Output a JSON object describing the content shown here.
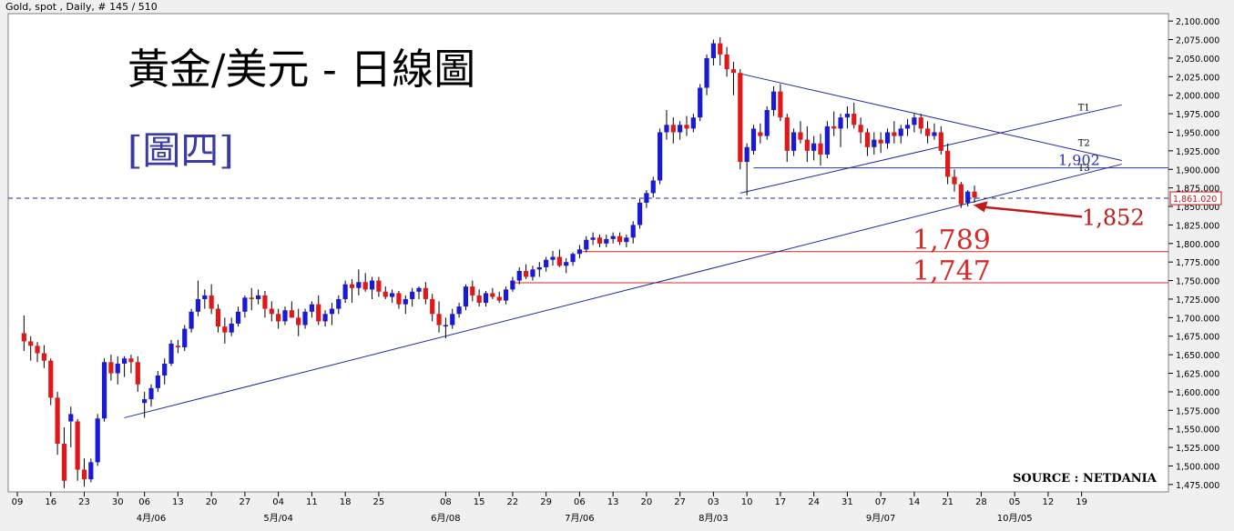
{
  "header": "Gold, spot , Daily, # 145 / 510",
  "chart_data": {
    "type": "candlestick",
    "title": "黃金/美元 - 日線圖",
    "subtitle": "[圖四]",
    "source": "SOURCE : NETDANIA",
    "price_marker": "1,861.020",
    "ylim": [
      1465,
      2110
    ],
    "yticks": [
      1475,
      1500,
      1525,
      1550,
      1575,
      1600,
      1625,
      1650,
      1675,
      1700,
      1725,
      1750,
      1775,
      1800,
      1825,
      1850,
      1875,
      1900,
      1925,
      1950,
      1975,
      2000,
      2025,
      2050,
      2075,
      2100
    ],
    "ytick_labels": [
      "1,475.000",
      "1,500.000",
      "1,525.000",
      "1,550.000",
      "1,575.000",
      "1,600.000",
      "1,625.000",
      "1,650.000",
      "1,675.000",
      "1,700.000",
      "1,725.000",
      "1,750.000",
      "1,775.000",
      "1,800.000",
      "1,825.000",
      "1,850.000",
      "1,875.000",
      "1,900.000",
      "1,925.000",
      "1,950.000",
      "1,975.000",
      "2,000.000",
      "2,025.000",
      "2,050.000",
      "2,075.000",
      "2,100.000"
    ],
    "x_day_labels": [
      {
        "i": 0,
        "t": "09"
      },
      {
        "i": 5,
        "t": "16"
      },
      {
        "i": 10,
        "t": "23"
      },
      {
        "i": 15,
        "t": "30"
      },
      {
        "i": 19,
        "t": "06"
      },
      {
        "i": 24,
        "t": "13"
      },
      {
        "i": 29,
        "t": "20"
      },
      {
        "i": 34,
        "t": "27"
      },
      {
        "i": 39,
        "t": "04"
      },
      {
        "i": 44,
        "t": "11"
      },
      {
        "i": 49,
        "t": "18"
      },
      {
        "i": 54,
        "t": "25"
      },
      {
        "i": 64,
        "t": "08"
      },
      {
        "i": 69,
        "t": "15"
      },
      {
        "i": 74,
        "t": "22"
      },
      {
        "i": 79,
        "t": "29"
      },
      {
        "i": 84,
        "t": "06"
      },
      {
        "i": 89,
        "t": "13"
      },
      {
        "i": 94,
        "t": "20"
      },
      {
        "i": 99,
        "t": "27"
      },
      {
        "i": 104,
        "t": "03"
      },
      {
        "i": 109,
        "t": "10"
      },
      {
        "i": 114,
        "t": "17"
      },
      {
        "i": 119,
        "t": "24"
      },
      {
        "i": 124,
        "t": "31"
      },
      {
        "i": 129,
        "t": "07"
      },
      {
        "i": 134,
        "t": "14"
      },
      {
        "i": 139,
        "t": "21"
      },
      {
        "i": 144,
        "t": "28"
      },
      {
        "i": 149,
        "t": "05"
      },
      {
        "i": 154,
        "t": "12"
      },
      {
        "i": 159,
        "t": "19"
      }
    ],
    "x_month_labels": [
      {
        "i": 20,
        "t": "4月/06"
      },
      {
        "i": 39,
        "t": "5月/04"
      },
      {
        "i": 64,
        "t": "6月/08"
      },
      {
        "i": 84,
        "t": "7月/06"
      },
      {
        "i": 104,
        "t": "8月/03"
      },
      {
        "i": 129,
        "t": "9月/07"
      },
      {
        "i": 149,
        "t": "10月/05"
      }
    ],
    "candles": [
      [
        1,
        1679,
        1703,
        1655,
        1668
      ],
      [
        2,
        1668,
        1675,
        1642,
        1662
      ],
      [
        3,
        1662,
        1667,
        1640,
        1652
      ],
      [
        4,
        1652,
        1663,
        1632,
        1642
      ],
      [
        5,
        1642,
        1645,
        1582,
        1592
      ],
      [
        6,
        1592,
        1600,
        1515,
        1530
      ],
      [
        7,
        1530,
        1552,
        1470,
        1480
      ],
      [
        8,
        1560,
        1580,
        1525,
        1570
      ],
      [
        9,
        1560,
        1563,
        1480,
        1495
      ],
      [
        10,
        1495,
        1510,
        1472,
        1482
      ],
      [
        11,
        1482,
        1510,
        1478,
        1505
      ],
      [
        12,
        1505,
        1570,
        1500,
        1564
      ],
      [
        13,
        1564,
        1645,
        1560,
        1640
      ],
      [
        14,
        1640,
        1650,
        1615,
        1625
      ],
      [
        15,
        1625,
        1648,
        1610,
        1638
      ],
      [
        16,
        1638,
        1648,
        1620,
        1645
      ],
      [
        17,
        1645,
        1650,
        1625,
        1640
      ],
      [
        18,
        1640,
        1648,
        1600,
        1610
      ],
      [
        19,
        1585,
        1600,
        1565,
        1590
      ],
      [
        20,
        1590,
        1610,
        1580,
        1605
      ],
      [
        21,
        1605,
        1628,
        1600,
        1622
      ],
      [
        22,
        1622,
        1645,
        1610,
        1638
      ],
      [
        23,
        1638,
        1670,
        1635,
        1665
      ],
      [
        24,
        1662,
        1670,
        1652,
        1660
      ],
      [
        25,
        1660,
        1690,
        1655,
        1685
      ],
      [
        26,
        1685,
        1712,
        1680,
        1708
      ],
      [
        27,
        1708,
        1750,
        1702,
        1725
      ],
      [
        28,
        1725,
        1738,
        1712,
        1730
      ],
      [
        29,
        1730,
        1745,
        1705,
        1712
      ],
      [
        30,
        1712,
        1718,
        1680,
        1688
      ],
      [
        31,
        1688,
        1700,
        1665,
        1680
      ],
      [
        32,
        1680,
        1700,
        1675,
        1692
      ],
      [
        33,
        1692,
        1715,
        1688,
        1708
      ],
      [
        34,
        1708,
        1730,
        1700,
        1727
      ],
      [
        35,
        1727,
        1740,
        1710,
        1725
      ],
      [
        36,
        1725,
        1738,
        1718,
        1730
      ],
      [
        37,
        1730,
        1736,
        1700,
        1712
      ],
      [
        38,
        1712,
        1722,
        1695,
        1705
      ],
      [
        39,
        1705,
        1712,
        1685,
        1695
      ],
      [
        40,
        1695,
        1715,
        1690,
        1710
      ],
      [
        41,
        1710,
        1722,
        1700,
        1700
      ],
      [
        42,
        1700,
        1712,
        1675,
        1690
      ],
      [
        43,
        1690,
        1712,
        1685,
        1708
      ],
      [
        44,
        1708,
        1722,
        1700,
        1718
      ],
      [
        45,
        1718,
        1730,
        1690,
        1695
      ],
      [
        46,
        1695,
        1710,
        1688,
        1705
      ],
      [
        47,
        1705,
        1720,
        1690,
        1712
      ],
      [
        48,
        1712,
        1730,
        1705,
        1725
      ],
      [
        49,
        1725,
        1750,
        1720,
        1745
      ],
      [
        50,
        1745,
        1752,
        1720,
        1740
      ],
      [
        51,
        1740,
        1765,
        1730,
        1748
      ],
      [
        52,
        1748,
        1760,
        1735,
        1738
      ],
      [
        53,
        1738,
        1755,
        1725,
        1750
      ],
      [
        54,
        1750,
        1755,
        1728,
        1735
      ],
      [
        55,
        1735,
        1742,
        1725,
        1728
      ],
      [
        56,
        1728,
        1738,
        1720,
        1733
      ],
      [
        57,
        1733,
        1736,
        1712,
        1718
      ],
      [
        58,
        1718,
        1730,
        1705,
        1725
      ],
      [
        59,
        1725,
        1740,
        1715,
        1735
      ],
      [
        60,
        1735,
        1742,
        1725,
        1740
      ],
      [
        61,
        1740,
        1748,
        1718,
        1725
      ],
      [
        62,
        1725,
        1732,
        1695,
        1705
      ],
      [
        63,
        1705,
        1722,
        1680,
        1690
      ],
      [
        64,
        1690,
        1700,
        1672,
        1690
      ],
      [
        65,
        1690,
        1712,
        1685,
        1705
      ],
      [
        66,
        1705,
        1720,
        1700,
        1715
      ],
      [
        67,
        1715,
        1745,
        1710,
        1742
      ],
      [
        68,
        1742,
        1750,
        1722,
        1730
      ],
      [
        69,
        1730,
        1738,
        1715,
        1720
      ],
      [
        70,
        1720,
        1736,
        1715,
        1733
      ],
      [
        71,
        1733,
        1740,
        1725,
        1728
      ],
      [
        72,
        1728,
        1735,
        1720,
        1723
      ],
      [
        73,
        1723,
        1742,
        1718,
        1738
      ],
      [
        74,
        1738,
        1755,
        1735,
        1750
      ],
      [
        75,
        1750,
        1768,
        1745,
        1763
      ],
      [
        76,
        1763,
        1772,
        1752,
        1755
      ],
      [
        77,
        1755,
        1770,
        1750,
        1765
      ],
      [
        78,
        1765,
        1775,
        1755,
        1768
      ],
      [
        79,
        1768,
        1782,
        1762,
        1778
      ],
      [
        80,
        1778,
        1790,
        1770,
        1782
      ],
      [
        81,
        1782,
        1792,
        1768,
        1770
      ],
      [
        82,
        1770,
        1780,
        1760,
        1775
      ],
      [
        83,
        1775,
        1788,
        1770,
        1786
      ],
      [
        84,
        1786,
        1798,
        1780,
        1792
      ],
      [
        85,
        1792,
        1810,
        1788,
        1805
      ],
      [
        86,
        1805,
        1815,
        1798,
        1808
      ],
      [
        87,
        1808,
        1812,
        1795,
        1800
      ],
      [
        88,
        1800,
        1812,
        1795,
        1806
      ],
      [
        89,
        1806,
        1815,
        1800,
        1810
      ],
      [
        90,
        1810,
        1815,
        1798,
        1802
      ],
      [
        91,
        1802,
        1812,
        1795,
        1808
      ],
      [
        92,
        1808,
        1830,
        1800,
        1825
      ],
      [
        93,
        1825,
        1860,
        1820,
        1855
      ],
      [
        94,
        1855,
        1872,
        1848,
        1868
      ],
      [
        95,
        1868,
        1890,
        1862,
        1885
      ],
      [
        96,
        1885,
        1955,
        1880,
        1950
      ],
      [
        97,
        1950,
        1980,
        1940,
        1960
      ],
      [
        98,
        1960,
        1970,
        1935,
        1950
      ],
      [
        99,
        1950,
        1965,
        1940,
        1960
      ],
      [
        100,
        1960,
        1972,
        1945,
        1955
      ],
      [
        101,
        1955,
        1975,
        1950,
        1970
      ],
      [
        102,
        1970,
        2015,
        1965,
        2010
      ],
      [
        103,
        2010,
        2055,
        2000,
        2050
      ],
      [
        104,
        2050,
        2075,
        2040,
        2070
      ],
      [
        105,
        2070,
        2078,
        2040,
        2055
      ],
      [
        106,
        2055,
        2065,
        2025,
        2035
      ],
      [
        107,
        2035,
        2045,
        2000,
        2030
      ],
      [
        108,
        2030,
        2035,
        1900,
        1910
      ],
      [
        109,
        1910,
        1935,
        1865,
        1930
      ],
      [
        110,
        1925,
        1960,
        1920,
        1955
      ],
      [
        111,
        1950,
        1962,
        1935,
        1945
      ],
      [
        112,
        1945,
        1985,
        1940,
        1980
      ],
      [
        113,
        1980,
        2012,
        1972,
        2005
      ],
      [
        114,
        2005,
        2015,
        1965,
        1970
      ],
      [
        115,
        1970,
        1975,
        1910,
        1925
      ],
      [
        116,
        1925,
        1955,
        1918,
        1950
      ],
      [
        117,
        1950,
        1965,
        1935,
        1940
      ],
      [
        118,
        1940,
        1958,
        1910,
        1925
      ],
      [
        119,
        1925,
        1945,
        1912,
        1935
      ],
      [
        120,
        1935,
        1948,
        1905,
        1920
      ],
      [
        121,
        1920,
        1965,
        1915,
        1958
      ],
      [
        122,
        1958,
        1978,
        1945,
        1955
      ],
      [
        123,
        1955,
        1975,
        1930,
        1970
      ],
      [
        124,
        1970,
        1985,
        1955,
        1975
      ],
      [
        125,
        1975,
        1990,
        1955,
        1960
      ],
      [
        126,
        1960,
        1970,
        1935,
        1950
      ],
      [
        127,
        1950,
        1955,
        1918,
        1930
      ],
      [
        128,
        1930,
        1950,
        1920,
        1940
      ],
      [
        129,
        1940,
        1950,
        1922,
        1935
      ],
      [
        130,
        1935,
        1955,
        1928,
        1950
      ],
      [
        131,
        1950,
        1965,
        1935,
        1945
      ],
      [
        132,
        1945,
        1960,
        1935,
        1955
      ],
      [
        133,
        1955,
        1968,
        1945,
        1960
      ],
      [
        134,
        1960,
        1975,
        1950,
        1970
      ],
      [
        135,
        1970,
        1975,
        1948,
        1955
      ],
      [
        136,
        1955,
        1965,
        1935,
        1945
      ],
      [
        137,
        1945,
        1962,
        1940,
        1950
      ],
      [
        138,
        1950,
        1958,
        1920,
        1925
      ],
      [
        139,
        1925,
        1935,
        1880,
        1890
      ],
      [
        140,
        1890,
        1900,
        1870,
        1880
      ],
      [
        141,
        1880,
        1883,
        1848,
        1853
      ],
      [
        142,
        1855,
        1872,
        1850,
        1870
      ],
      [
        143,
        1870,
        1878,
        1855,
        1862
      ]
    ],
    "support_resistance": [
      {
        "label": "1,902",
        "price": 1902,
        "from": 110,
        "to": 163,
        "color": "#2a35a0"
      },
      {
        "label": "1,789",
        "price": 1789,
        "from": 84,
        "to": 163,
        "color": "#d42a2a"
      },
      {
        "label": "1,747",
        "price": 1747,
        "from": 74,
        "to": 163,
        "color": "#d42a2a"
      }
    ],
    "trendlines": [
      {
        "name": "T1",
        "x1": 108,
        "y1": 1868,
        "x2": 165,
        "y2": 1987
      },
      {
        "name": "T2",
        "x1": 108,
        "y1": 2029,
        "x2": 165,
        "y2": 1912
      },
      {
        "name": "T3",
        "x1": 16,
        "y1": 1565,
        "x2": 165,
        "y2": 1907
      }
    ],
    "annotation": {
      "label": "1,852",
      "at_index": 142,
      "price": 1852
    },
    "colors": {
      "up": "#1a1ad6",
      "down": "#e01818",
      "wick": "#000000",
      "line": "#1d2a9e",
      "marker": "#c01a1a",
      "title": "#000000",
      "subtitle": "#3a3aa6"
    }
  }
}
